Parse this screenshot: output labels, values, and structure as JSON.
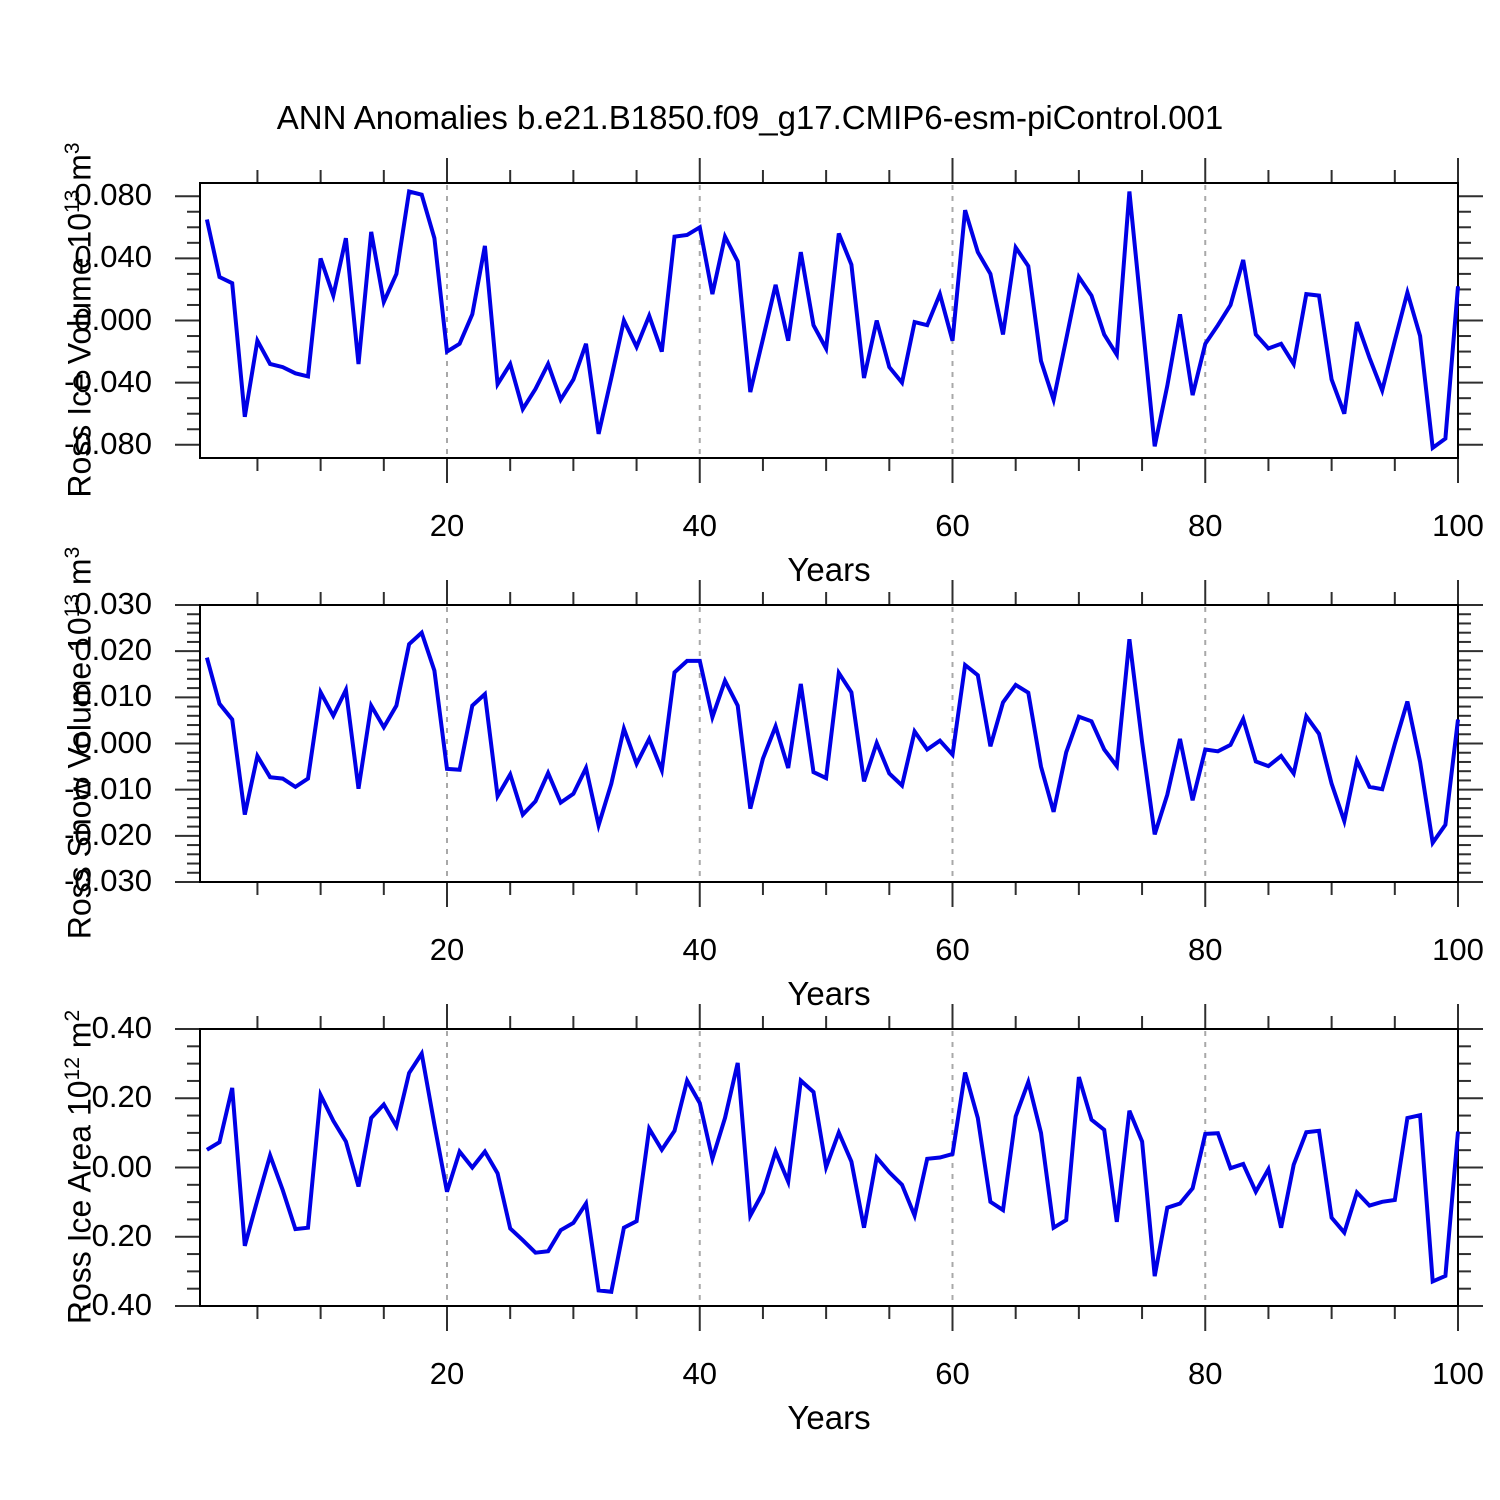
{
  "title": "ANN Anomalies b.e21.B1850.f09_g17.CMIP6-esm-piControl.001",
  "colors": {
    "line": "#0000e6",
    "grid": "#a8a8a8",
    "tick": "#2f2f2f",
    "frame": "#000000"
  },
  "chart_data": [
    {
      "id": "ross-ice-volume",
      "type": "line",
      "xlabel": "Years",
      "ylabel_text": "Ross Ice Volume 10^13 m^3",
      "ylabel": {
        "base1": "Ross Ice Volume 10",
        "exp1": "13",
        "base2": " m",
        "exp2": "3"
      },
      "x_years": [
        1,
        100
      ],
      "xlim": [
        0.45,
        100
      ],
      "ylim": [
        -0.0885,
        0.0885
      ],
      "grid_on": true,
      "legend": "none",
      "yticks": [
        {
          "v": 0.08,
          "label": "0.080"
        },
        {
          "v": 0.04,
          "label": "0.040"
        },
        {
          "v": 0.0,
          "label": "0.000"
        },
        {
          "v": -0.04,
          "label": "-0.040"
        },
        {
          "v": -0.08,
          "label": "-0.080"
        }
      ],
      "yminor_step": 0.01,
      "xticks": [
        {
          "v": 20,
          "label": "20"
        },
        {
          "v": 40,
          "label": "40"
        },
        {
          "v": 60,
          "label": "60"
        },
        {
          "v": 80,
          "label": "80"
        },
        {
          "v": 100,
          "label": "100"
        }
      ],
      "xminor_step": 5,
      "grid_x": [
        20,
        40,
        60,
        80
      ],
      "values": [
        0.065,
        0.028,
        0.024,
        -0.062,
        -0.013,
        -0.028,
        -0.03,
        -0.034,
        -0.036,
        0.04,
        0.016,
        0.053,
        -0.028,
        0.057,
        0.012,
        0.03,
        0.083,
        0.081,
        0.053,
        -0.02,
        -0.015,
        0.004,
        0.048,
        -0.041,
        -0.028,
        -0.057,
        -0.044,
        -0.028,
        -0.051,
        -0.038,
        -0.015,
        -0.073,
        -0.037,
        0.0,
        -0.017,
        0.003,
        -0.02,
        0.054,
        0.055,
        0.06,
        0.017,
        0.054,
        0.038,
        -0.046,
        -0.012,
        0.023,
        -0.013,
        0.044,
        -0.003,
        -0.018,
        0.056,
        0.036,
        -0.037,
        0.0,
        -0.03,
        -0.04,
        -0.001,
        -0.003,
        0.017,
        -0.013,
        0.071,
        0.044,
        0.03,
        -0.009,
        0.047,
        0.035,
        -0.026,
        -0.051,
        -0.012,
        0.028,
        0.016,
        -0.009,
        -0.022,
        0.083,
        0.001,
        -0.081,
        -0.042,
        0.004,
        -0.048,
        -0.015,
        -0.003,
        0.01,
        0.039,
        -0.009,
        -0.018,
        -0.015,
        -0.028,
        0.017,
        0.016,
        -0.038,
        -0.06,
        -0.001,
        -0.024,
        -0.045,
        -0.013,
        0.018,
        -0.01,
        -0.082,
        -0.076,
        0.022
      ]
    },
    {
      "id": "ross-snow-volume",
      "type": "line",
      "xlabel": "Years",
      "ylabel_text": "Ross Snow Volume 10^13 m^3",
      "ylabel": {
        "base1": "Ross Snow Volume 10",
        "exp1": "13",
        "base2": " m",
        "exp2": "3"
      },
      "x_years": [
        1,
        100
      ],
      "xlim": [
        0.45,
        100
      ],
      "ylim": [
        -0.03,
        0.03
      ],
      "grid_on": true,
      "legend": "none",
      "yticks": [
        {
          "v": 0.03,
          "label": "0.030"
        },
        {
          "v": 0.02,
          "label": "0.020"
        },
        {
          "v": 0.01,
          "label": "0.010"
        },
        {
          "v": 0.0,
          "label": "0.000"
        },
        {
          "v": -0.01,
          "label": "-0.010"
        },
        {
          "v": -0.02,
          "label": "-0.020"
        },
        {
          "v": -0.03,
          "label": "-0.030"
        }
      ],
      "yminor_step": 0.002,
      "xticks": [
        {
          "v": 20,
          "label": "20"
        },
        {
          "v": 40,
          "label": "40"
        },
        {
          "v": 60,
          "label": "60"
        },
        {
          "v": 80,
          "label": "80"
        },
        {
          "v": 100,
          "label": "100"
        }
      ],
      "xminor_step": 5,
      "grid_x": [
        20,
        40,
        60,
        80
      ],
      "values": [
        0.0186,
        0.0086,
        0.0052,
        -0.0154,
        -0.0027,
        -0.0073,
        -0.0076,
        -0.0094,
        -0.0076,
        0.0111,
        0.006,
        0.0116,
        -0.0098,
        0.0082,
        0.0035,
        0.0082,
        0.0215,
        0.024,
        0.0158,
        -0.0055,
        -0.0057,
        0.0082,
        0.0107,
        -0.0114,
        -0.0067,
        -0.0154,
        -0.0125,
        -0.0064,
        -0.0128,
        -0.0109,
        -0.0053,
        -0.0177,
        -0.0087,
        0.0032,
        -0.0044,
        0.001,
        -0.0058,
        0.0154,
        0.0179,
        0.0179,
        0.0057,
        0.0136,
        0.0082,
        -0.0141,
        -0.0033,
        0.0037,
        -0.0053,
        0.0129,
        -0.0062,
        -0.0075,
        0.0153,
        0.0111,
        -0.0082,
        0.0001,
        -0.0065,
        -0.0091,
        0.0026,
        -0.0013,
        0.0006,
        -0.0024,
        0.017,
        0.0148,
        -0.0006,
        0.0089,
        0.0127,
        0.011,
        -0.005,
        -0.0148,
        -0.0019,
        0.0058,
        0.0048,
        -0.0013,
        -0.0049,
        0.0226,
        0.0003,
        -0.0197,
        -0.0111,
        0.001,
        -0.0123,
        -0.0013,
        -0.0017,
        -0.0003,
        0.0053,
        -0.0039,
        -0.0049,
        -0.0027,
        -0.0065,
        0.0059,
        0.0021,
        -0.0087,
        -0.0168,
        -0.0037,
        -0.0094,
        -0.0099,
        -0.0001,
        0.0091,
        -0.004,
        -0.0215,
        -0.0176,
        0.0052
      ]
    },
    {
      "id": "ross-ice-area",
      "type": "line",
      "xlabel": "Years",
      "ylabel_text": "Ross Ice Area 10^12 m^2",
      "ylabel": {
        "base1": "Ross Ice Area 10",
        "exp1": "12",
        "base2": " m",
        "exp2": "2"
      },
      "x_years": [
        1,
        100
      ],
      "xlim": [
        0.45,
        100
      ],
      "ylim": [
        -0.4,
        0.4
      ],
      "grid_on": true,
      "legend": "none",
      "yticks": [
        {
          "v": 0.4,
          "label": "0.40"
        },
        {
          "v": 0.2,
          "label": "0.20"
        },
        {
          "v": 0.0,
          "label": "0.00"
        },
        {
          "v": -0.2,
          "label": "-0.20"
        },
        {
          "v": -0.4,
          "label": "-0.40"
        }
      ],
      "yminor_step": 0.05,
      "xticks": [
        {
          "v": 20,
          "label": "20"
        },
        {
          "v": 40,
          "label": "40"
        },
        {
          "v": 60,
          "label": "60"
        },
        {
          "v": 80,
          "label": "80"
        },
        {
          "v": 100,
          "label": "100"
        }
      ],
      "xminor_step": 5,
      "grid_x": [
        20,
        40,
        60,
        80
      ],
      "values": [
        0.051,
        0.073,
        0.23,
        -0.226,
        -0.094,
        0.035,
        -0.065,
        -0.178,
        -0.174,
        0.209,
        0.135,
        0.075,
        -0.055,
        0.143,
        0.182,
        0.119,
        0.273,
        0.329,
        0.124,
        -0.07,
        0.046,
        0.0,
        0.046,
        -0.017,
        -0.176,
        -0.21,
        -0.246,
        -0.242,
        -0.181,
        -0.16,
        -0.104,
        -0.355,
        -0.359,
        -0.174,
        -0.155,
        0.112,
        0.051,
        0.106,
        0.251,
        0.186,
        0.025,
        0.143,
        0.302,
        -0.139,
        -0.072,
        0.046,
        -0.041,
        0.251,
        0.218,
        0.001,
        0.101,
        0.017,
        -0.174,
        0.029,
        -0.014,
        -0.05,
        -0.139,
        0.025,
        0.029,
        0.039,
        0.274,
        0.143,
        -0.099,
        -0.123,
        0.148,
        0.247,
        0.1,
        -0.174,
        -0.152,
        0.261,
        0.138,
        0.109,
        -0.157,
        0.164,
        0.075,
        -0.314,
        -0.116,
        -0.104,
        -0.06,
        0.097,
        0.099,
        -0.002,
        0.01,
        -0.07,
        -0.005,
        -0.174,
        0.008,
        0.102,
        0.106,
        -0.145,
        -0.188,
        -0.072,
        -0.11,
        -0.099,
        -0.094,
        0.143,
        0.151,
        -0.329,
        -0.313,
        0.104
      ]
    }
  ]
}
